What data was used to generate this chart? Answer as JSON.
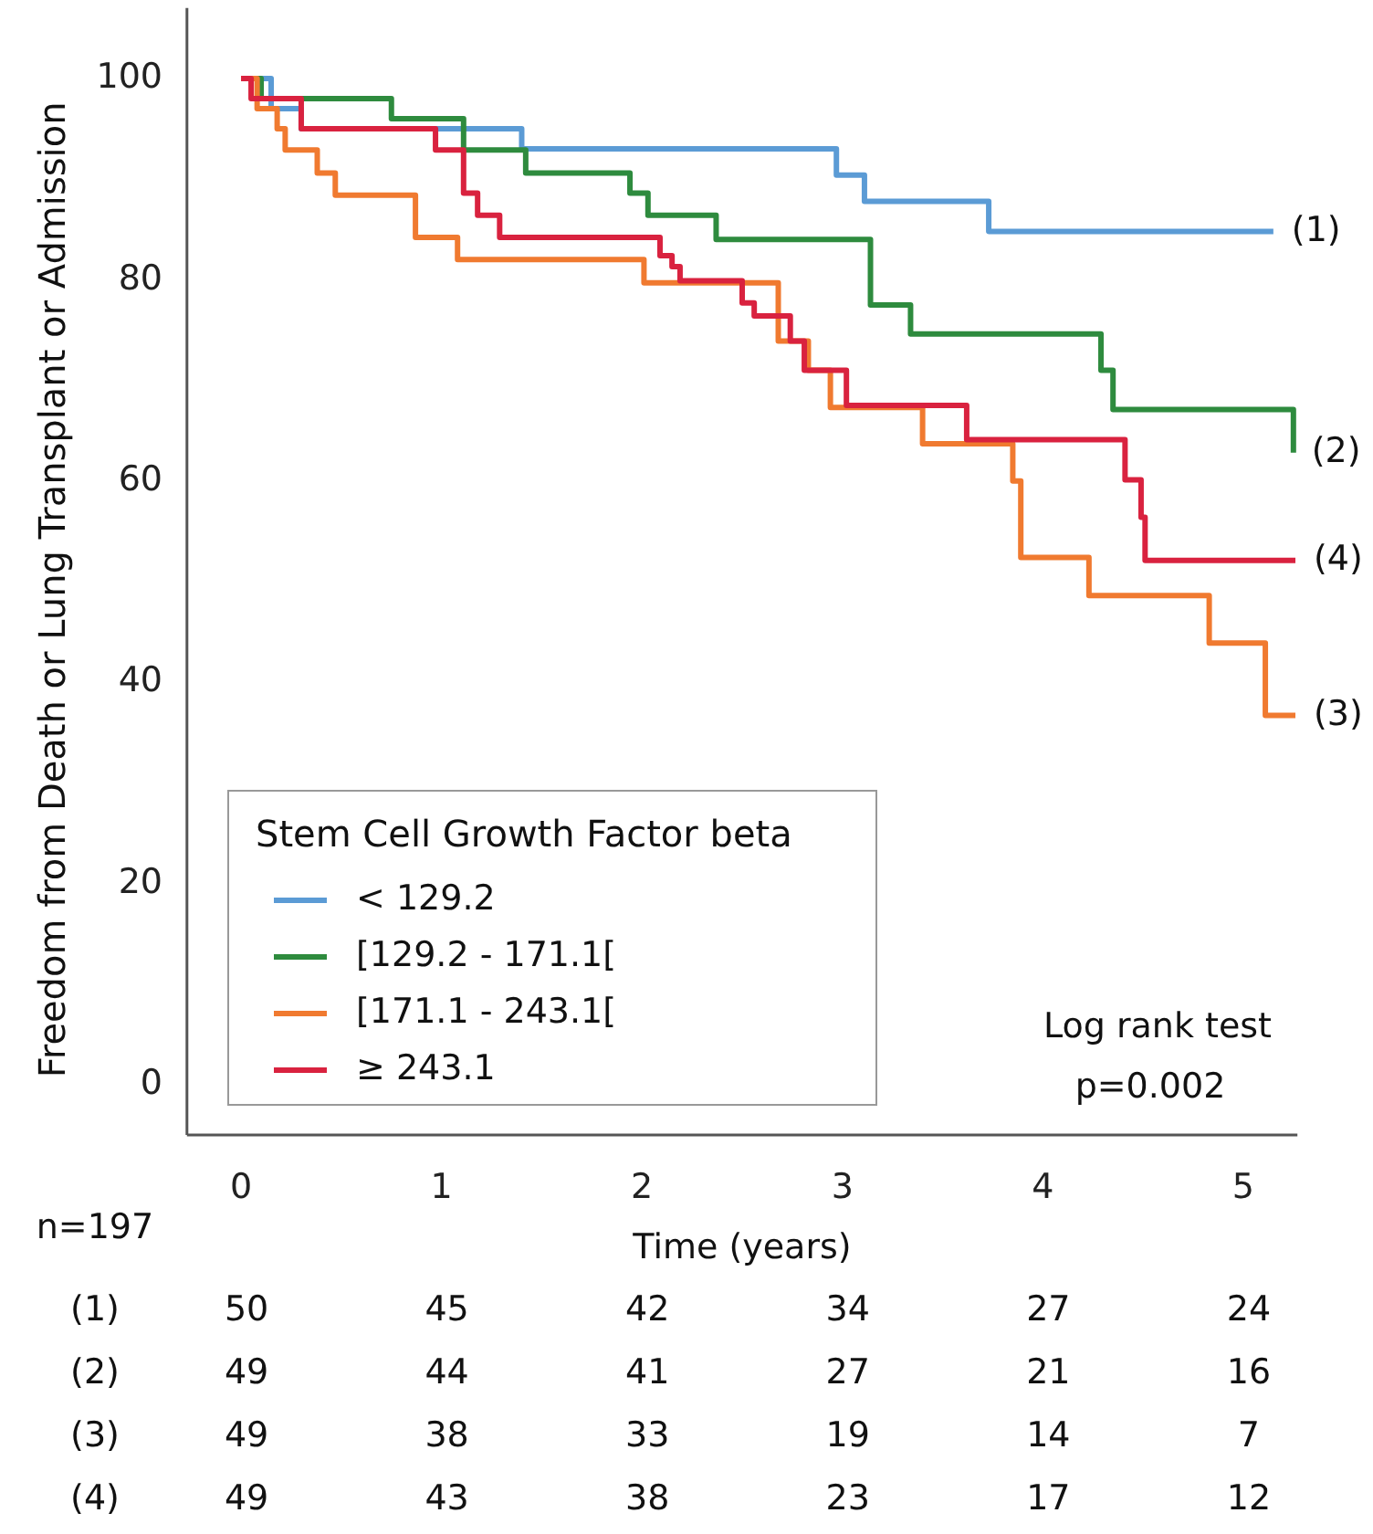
{
  "chart_data": {
    "type": "step",
    "ylabel": "Freedom from Death or Lung Transplant or Admission",
    "xlabel": "Time (years)",
    "legend_title": "Stem Cell Growth Factor beta",
    "legend": "bottom left",
    "grid": false,
    "xlim": [
      -0.27,
      5.27
    ],
    "xticks": [
      0,
      1,
      2,
      3,
      4,
      5
    ],
    "ylim": [
      -5,
      107
    ],
    "yticks": [
      0,
      20,
      40,
      60,
      80,
      100
    ],
    "series": [
      {
        "name": "< 129.2",
        "color": "#5b9bd5",
        "x": [
          0,
          0.15,
          0.3,
          1.4,
          2.97,
          3.11,
          3.73,
          5.15
        ],
        "values": [
          100,
          97,
          95,
          93,
          90.4,
          87.8,
          84.8,
          84.8
        ]
      },
      {
        "name": "[129.2 - 171.1[",
        "color": "#2e8b3e",
        "x": [
          0,
          0.1,
          0.75,
          1.11,
          1.42,
          1.94,
          2.03,
          2.37,
          3.14,
          3.34,
          4.29,
          4.35,
          5.25,
          5.25
        ],
        "values": [
          100,
          98,
          96,
          92.9,
          90.6,
          88.6,
          86.4,
          84,
          77.5,
          74.6,
          71,
          67.1,
          67.1,
          62.8
        ]
      },
      {
        "name": "[171.1 - 243.1[",
        "color": "#f07a30",
        "x": [
          0,
          0.08,
          0.18,
          0.22,
          0.38,
          0.47,
          0.87,
          1.08,
          2.01,
          2.68,
          2.83,
          2.94,
          3.4,
          3.85,
          3.89,
          4.23,
          4.83,
          5.11,
          5.26
        ],
        "values": [
          100,
          97,
          95,
          92.9,
          90.6,
          88.4,
          84.2,
          82,
          79.7,
          73.9,
          71,
          67.3,
          63.7,
          60,
          52.4,
          48.6,
          43.9,
          36.7,
          36.7
        ]
      },
      {
        "name": "≥ 243.1",
        "color": "#d9223f",
        "x": [
          0,
          0.05,
          0.3,
          0.97,
          1.11,
          1.18,
          1.29,
          2.09,
          2.15,
          2.19,
          2.5,
          2.56,
          2.74,
          2.81,
          3.02,
          3.62,
          4.41,
          4.49,
          4.51,
          5.26
        ],
        "values": [
          100,
          98,
          95,
          92.9,
          88.6,
          86.4,
          84.2,
          82.4,
          81.3,
          79.9,
          77.7,
          76.4,
          73.9,
          71,
          67.5,
          64.1,
          60.1,
          56.4,
          52.1,
          52.1
        ]
      }
    ],
    "annotations": [
      {
        "text": "(1)",
        "x": 5.15,
        "y": 84.8
      },
      {
        "text": "(2)",
        "x": 5.25,
        "y": 62.8
      },
      {
        "text": "(4)",
        "x": 5.26,
        "y": 52.1
      },
      {
        "text": "(3)",
        "x": 5.26,
        "y": 36.7
      },
      "Log rank test",
      "p=0.002",
      "n=197",
      "(1) 50 45 42 34 27 24",
      "(2) 49 44 41 27 21 16",
      "(3) 49 38 33 19 14 7",
      "(4) 49 43 38 23 17 12"
    ]
  }
}
